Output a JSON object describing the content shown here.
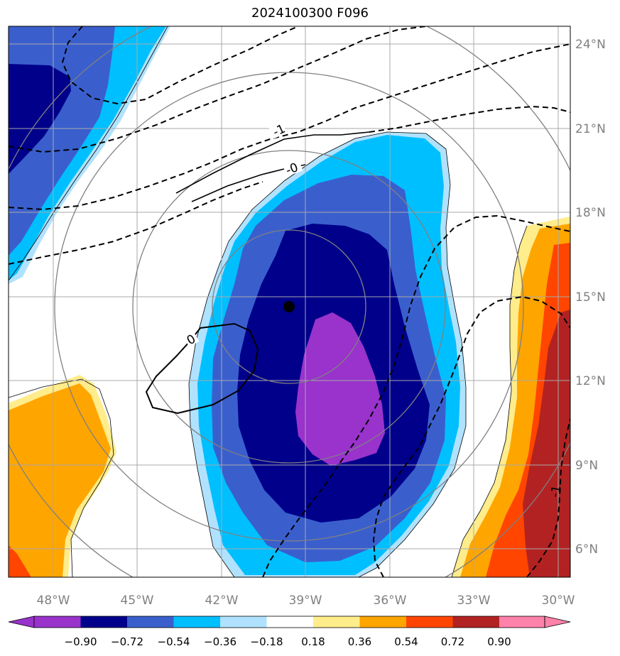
{
  "title": "2024100300 F096",
  "map": {
    "lon_labels": [
      "48°W",
      "45°W",
      "42°W",
      "39°W",
      "36°W",
      "33°W",
      "30°W"
    ],
    "lat_labels": [
      "24°N",
      "21°N",
      "18°N",
      "15°N",
      "12°N",
      "9°N",
      "6°N"
    ],
    "storm_center_marker": "black-dot",
    "contour_labels": [
      "-1",
      "-0",
      "0",
      "-1"
    ]
  },
  "colorbar": {
    "ticks": [
      "−0.90",
      "−0.72",
      "−0.54",
      "−0.36",
      "−0.18",
      "0.18",
      "0.36",
      "0.54",
      "0.72",
      "0.90"
    ],
    "colors": [
      "#9933cc",
      "#00008b",
      "#3a5fcd",
      "#00bfff",
      "#b0e2ff",
      "#ffffff",
      "#ffec8b",
      "#ffa500",
      "#ff4500",
      "#b22222",
      "#ff82ab"
    ]
  }
}
